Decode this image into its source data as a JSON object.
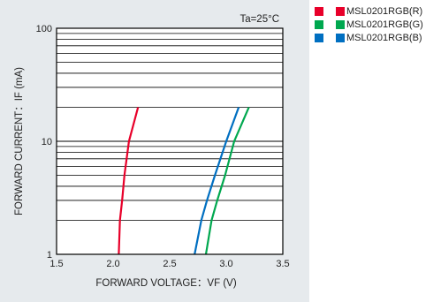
{
  "chart_data": {
    "type": "line",
    "title": "",
    "annotation": "Ta=25°C",
    "xlabel": "FORWARD VOLTAGE：VF  (V)",
    "ylabel": "FORWARD CURRENT：IF  (mA)",
    "x_scale": "linear",
    "y_scale": "log",
    "xlim": [
      1.5,
      3.5
    ],
    "ylim": [
      1,
      100
    ],
    "x_ticks": [
      "1.5",
      "2.0",
      "2.5",
      "3.0",
      "3.5"
    ],
    "x_tick_values": [
      1.5,
      2.0,
      2.5,
      3.0,
      3.5
    ],
    "y_ticks": [
      "1",
      "10",
      "100"
    ],
    "y_tick_values": [
      1,
      10,
      100
    ],
    "grid": "horizontal",
    "legend_position": "outside-top-right",
    "series": [
      {
        "name": "MSL0201RGB(R)",
        "color": "#e8002a",
        "points": [
          [
            2.05,
            1
          ],
          [
            2.06,
            2
          ],
          [
            2.08,
            3
          ],
          [
            2.1,
            5
          ],
          [
            2.14,
            10
          ],
          [
            2.22,
            20
          ]
        ]
      },
      {
        "name": "MSL0201RGB(G)",
        "color": "#00a84f",
        "points": [
          [
            2.82,
            1
          ],
          [
            2.87,
            2
          ],
          [
            2.92,
            3
          ],
          [
            2.99,
            5
          ],
          [
            3.07,
            10
          ],
          [
            3.2,
            20
          ]
        ]
      },
      {
        "name": "MSL0201RGB(B)",
        "color": "#006fc1",
        "points": [
          [
            2.72,
            1
          ],
          [
            2.78,
            2
          ],
          [
            2.83,
            3
          ],
          [
            2.9,
            5
          ],
          [
            3.0,
            10
          ],
          [
            3.11,
            20
          ]
        ]
      }
    ]
  }
}
